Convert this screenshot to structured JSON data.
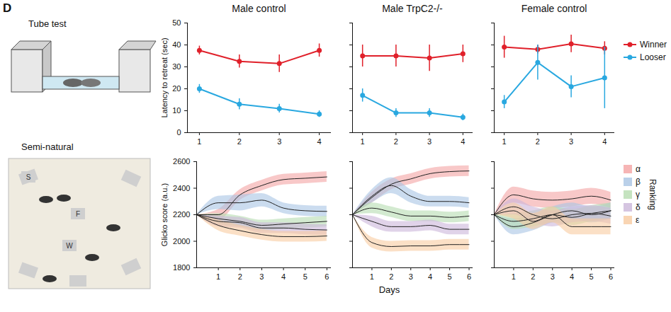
{
  "panel_label": "D",
  "xlabel": "Days",
  "illustrations": [
    {
      "title": "Tube test"
    },
    {
      "title": "Semi-natural",
      "labels": [
        "S",
        "F",
        "W"
      ]
    }
  ],
  "chart_data": [
    {
      "type": "line",
      "title": "Male control",
      "ylabel": "Latency to retreat (sec)",
      "x": [
        1,
        2,
        3,
        4
      ],
      "xlim": [
        0.7,
        4.3
      ],
      "xticks": [
        1,
        2,
        3,
        4
      ],
      "ylim": [
        0,
        50
      ],
      "yticks": [
        0,
        10,
        20,
        30,
        40,
        50
      ],
      "series": [
        {
          "name": "Winner",
          "color": "#e0202a",
          "marker": "circle",
          "values": [
            37.5,
            32.5,
            31.5,
            37.5
          ],
          "error": [
            2,
            3,
            4,
            3
          ]
        },
        {
          "name": "Looser",
          "color": "#29a8e0",
          "marker": "circle",
          "values": [
            20,
            13,
            11,
            8.5
          ],
          "error": [
            2,
            2.5,
            2,
            1.5
          ]
        }
      ]
    },
    {
      "type": "line",
      "title": "Male TrpC2-/-",
      "tick_labels": "x",
      "x": [
        1,
        2,
        3,
        4
      ],
      "xlim": [
        0.7,
        4.3
      ],
      "xticks": [
        1,
        2,
        3,
        4
      ],
      "ylim": [
        0,
        50
      ],
      "yticks": [
        0,
        10,
        20,
        30,
        40,
        50
      ],
      "series": [
        {
          "name": "Winner",
          "color": "#e0202a",
          "marker": "circle",
          "values": [
            35,
            35,
            34,
            36
          ],
          "error": [
            5,
            5,
            6,
            4
          ]
        },
        {
          "name": "Looser",
          "color": "#29a8e0",
          "marker": "circle",
          "values": [
            17,
            9,
            9,
            7
          ],
          "error": [
            3,
            2,
            2,
            1.5
          ]
        }
      ]
    },
    {
      "type": "line",
      "title": "Female control",
      "tick_labels": "x",
      "legend": "right",
      "x": [
        1,
        2,
        3,
        4
      ],
      "xlim": [
        0.7,
        4.3
      ],
      "xticks": [
        1,
        2,
        3,
        4
      ],
      "ylim": [
        0,
        50
      ],
      "yticks": [
        0,
        10,
        20,
        30,
        40,
        50
      ],
      "series": [
        {
          "name": "Winner",
          "color": "#e0202a",
          "marker": "circle",
          "values": [
            39,
            38,
            40.5,
            38.5
          ],
          "error": [
            5,
            2,
            4,
            3
          ]
        },
        {
          "name": "Looser",
          "color": "#29a8e0",
          "marker": "circle",
          "values": [
            14,
            32,
            21,
            25
          ],
          "error": [
            3,
            8,
            5,
            14
          ]
        }
      ]
    },
    {
      "type": "line",
      "ylabel": "Glicko score (a.u.)",
      "x": [
        0,
        1,
        2,
        3,
        4,
        5,
        6
      ],
      "xlim": [
        0,
        6.2
      ],
      "xticks": [
        1,
        2,
        3,
        4,
        5,
        6
      ],
      "ylim": [
        1800,
        2600
      ],
      "yticks": [
        1800,
        2000,
        2200,
        2400,
        2600
      ],
      "series": [
        {
          "name": "α",
          "color": "#f4a3a3",
          "values": [
            2200,
            2200,
            2350,
            2420,
            2465,
            2475,
            2485
          ],
          "band": [
            0,
            40,
            40,
            40,
            40,
            40,
            40
          ]
        },
        {
          "name": "β",
          "color": "#a9c4e4",
          "values": [
            2200,
            2290,
            2290,
            2310,
            2250,
            2230,
            2225
          ],
          "band": [
            0,
            50,
            60,
            50,
            40,
            40,
            40
          ]
        },
        {
          "name": "γ",
          "color": "#b6dcb0",
          "values": [
            2200,
            2170,
            2150,
            2120,
            2130,
            2140,
            2150
          ],
          "band": [
            0,
            40,
            40,
            40,
            40,
            40,
            40
          ]
        },
        {
          "name": "δ",
          "color": "#cbb6da",
          "values": [
            2200,
            2150,
            2140,
            2100,
            2100,
            2090,
            2085
          ],
          "band": [
            0,
            40,
            40,
            40,
            40,
            40,
            40
          ]
        },
        {
          "name": "ε",
          "color": "#f8cba0",
          "values": [
            2200,
            2120,
            2080,
            2050,
            2035,
            2035,
            2040
          ],
          "band": [
            0,
            40,
            40,
            40,
            40,
            40,
            40
          ]
        }
      ]
    },
    {
      "type": "line",
      "tick_labels": "x",
      "x": [
        0,
        1,
        2,
        3,
        4,
        5,
        6
      ],
      "xlim": [
        0,
        6.2
      ],
      "xticks": [
        1,
        2,
        3,
        4,
        5,
        6
      ],
      "ylim": [
        1800,
        2600
      ],
      "yticks": [
        1800,
        2000,
        2200,
        2400,
        2600
      ],
      "series": [
        {
          "name": "α",
          "color": "#f4a3a3",
          "values": [
            2200,
            2330,
            2430,
            2470,
            2510,
            2525,
            2530
          ],
          "band": [
            0,
            40,
            40,
            40,
            40,
            40,
            40
          ]
        },
        {
          "name": "β",
          "color": "#a9c4e4",
          "values": [
            2200,
            2340,
            2420,
            2340,
            2300,
            2300,
            2290
          ],
          "band": [
            0,
            50,
            60,
            50,
            40,
            40,
            40
          ]
        },
        {
          "name": "γ",
          "color": "#b6dcb0",
          "values": [
            2200,
            2250,
            2220,
            2190,
            2190,
            2180,
            2190
          ],
          "band": [
            0,
            40,
            40,
            40,
            40,
            40,
            40
          ]
        },
        {
          "name": "δ",
          "color": "#cbb6da",
          "values": [
            2200,
            2150,
            2110,
            2110,
            2120,
            2090,
            2090
          ],
          "band": [
            0,
            40,
            40,
            40,
            40,
            40,
            40
          ]
        },
        {
          "name": "ε",
          "color": "#f8cba0",
          "values": [
            2200,
            1990,
            1960,
            1965,
            1965,
            1975,
            1975
          ],
          "band": [
            0,
            40,
            40,
            40,
            40,
            40,
            40
          ]
        }
      ]
    },
    {
      "type": "line",
      "tick_labels": "x",
      "legend": "right",
      "legend_title": "Ranking",
      "x": [
        0,
        1,
        2,
        3,
        4,
        5,
        6
      ],
      "xlim": [
        0,
        6.2
      ],
      "xticks": [
        1,
        2,
        3,
        4,
        5,
        6
      ],
      "ylim": [
        1800,
        2600
      ],
      "yticks": [
        1800,
        2000,
        2200,
        2400,
        2600
      ],
      "series": [
        {
          "name": "α",
          "color": "#f4a3a3",
          "values": [
            2200,
            2350,
            2320,
            2310,
            2320,
            2340,
            2310
          ],
          "band": [
            0,
            60,
            60,
            60,
            60,
            60,
            60
          ]
        },
        {
          "name": "β",
          "color": "#a9c4e4",
          "values": [
            2200,
            2110,
            2140,
            2200,
            2230,
            2200,
            2230
          ],
          "band": [
            0,
            60,
            60,
            60,
            60,
            60,
            60
          ]
        },
        {
          "name": "γ",
          "color": "#b6dcb0",
          "values": [
            2200,
            2150,
            2170,
            2200,
            2180,
            2210,
            2230
          ],
          "band": [
            0,
            60,
            60,
            60,
            60,
            60,
            60
          ]
        },
        {
          "name": "δ",
          "color": "#cbb6da",
          "values": [
            2200,
            2260,
            2200,
            2170,
            2200,
            2210,
            2190
          ],
          "band": [
            0,
            60,
            60,
            60,
            60,
            60,
            60
          ]
        },
        {
          "name": "ε",
          "color": "#f8cba0",
          "values": [
            2200,
            2230,
            2150,
            2200,
            2110,
            2110,
            2110
          ],
          "band": [
            0,
            60,
            60,
            60,
            60,
            60,
            60
          ]
        }
      ]
    }
  ]
}
